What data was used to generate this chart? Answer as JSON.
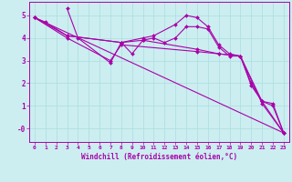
{
  "xlabel": "Windchill (Refroidissement éolien,°C)",
  "bg_color": "#cceef0",
  "line_color": "#aa00aa",
  "grid_color": "#aadddd",
  "xlim": [
    -0.5,
    23.5
  ],
  "ylim": [
    -0.6,
    5.6
  ],
  "xticks": [
    0,
    1,
    2,
    3,
    4,
    5,
    6,
    7,
    8,
    9,
    10,
    11,
    12,
    13,
    14,
    15,
    16,
    17,
    18,
    19,
    20,
    21,
    22,
    23
  ],
  "yticks": [
    0,
    1,
    2,
    3,
    4,
    5
  ],
  "ytick_labels": [
    "-0",
    "1",
    "2",
    "3",
    "4",
    "5"
  ],
  "lines": [
    {
      "x": [
        0,
        1,
        3,
        8,
        10,
        11,
        13,
        14,
        15,
        16,
        17,
        18,
        19,
        20,
        21,
        22,
        23
      ],
      "y": [
        4.9,
        4.7,
        4.1,
        3.8,
        4.0,
        4.1,
        4.6,
        5.0,
        4.9,
        4.5,
        3.7,
        3.3,
        3.2,
        2.0,
        1.2,
        1.0,
        -0.2
      ]
    },
    {
      "x": [
        3,
        4,
        7,
        8,
        9,
        10,
        11,
        12,
        13,
        14,
        15,
        16,
        17,
        18,
        19,
        20,
        21,
        22,
        23
      ],
      "y": [
        5.3,
        4.0,
        2.9,
        3.8,
        3.3,
        3.9,
        4.0,
        3.8,
        4.0,
        4.5,
        4.5,
        4.4,
        3.6,
        3.2,
        3.2,
        1.9,
        1.2,
        1.1,
        -0.2
      ]
    },
    {
      "x": [
        0,
        3,
        8,
        10,
        15,
        17,
        19,
        21,
        23
      ],
      "y": [
        4.9,
        4.1,
        3.8,
        3.9,
        3.5,
        3.3,
        3.2,
        1.2,
        -0.2
      ]
    },
    {
      "x": [
        0,
        3,
        7,
        8,
        15,
        17,
        19,
        21,
        23
      ],
      "y": [
        4.9,
        4.0,
        3.0,
        3.7,
        3.4,
        3.3,
        3.2,
        1.1,
        -0.2
      ]
    },
    {
      "x": [
        0,
        23
      ],
      "y": [
        4.9,
        -0.2
      ]
    }
  ]
}
